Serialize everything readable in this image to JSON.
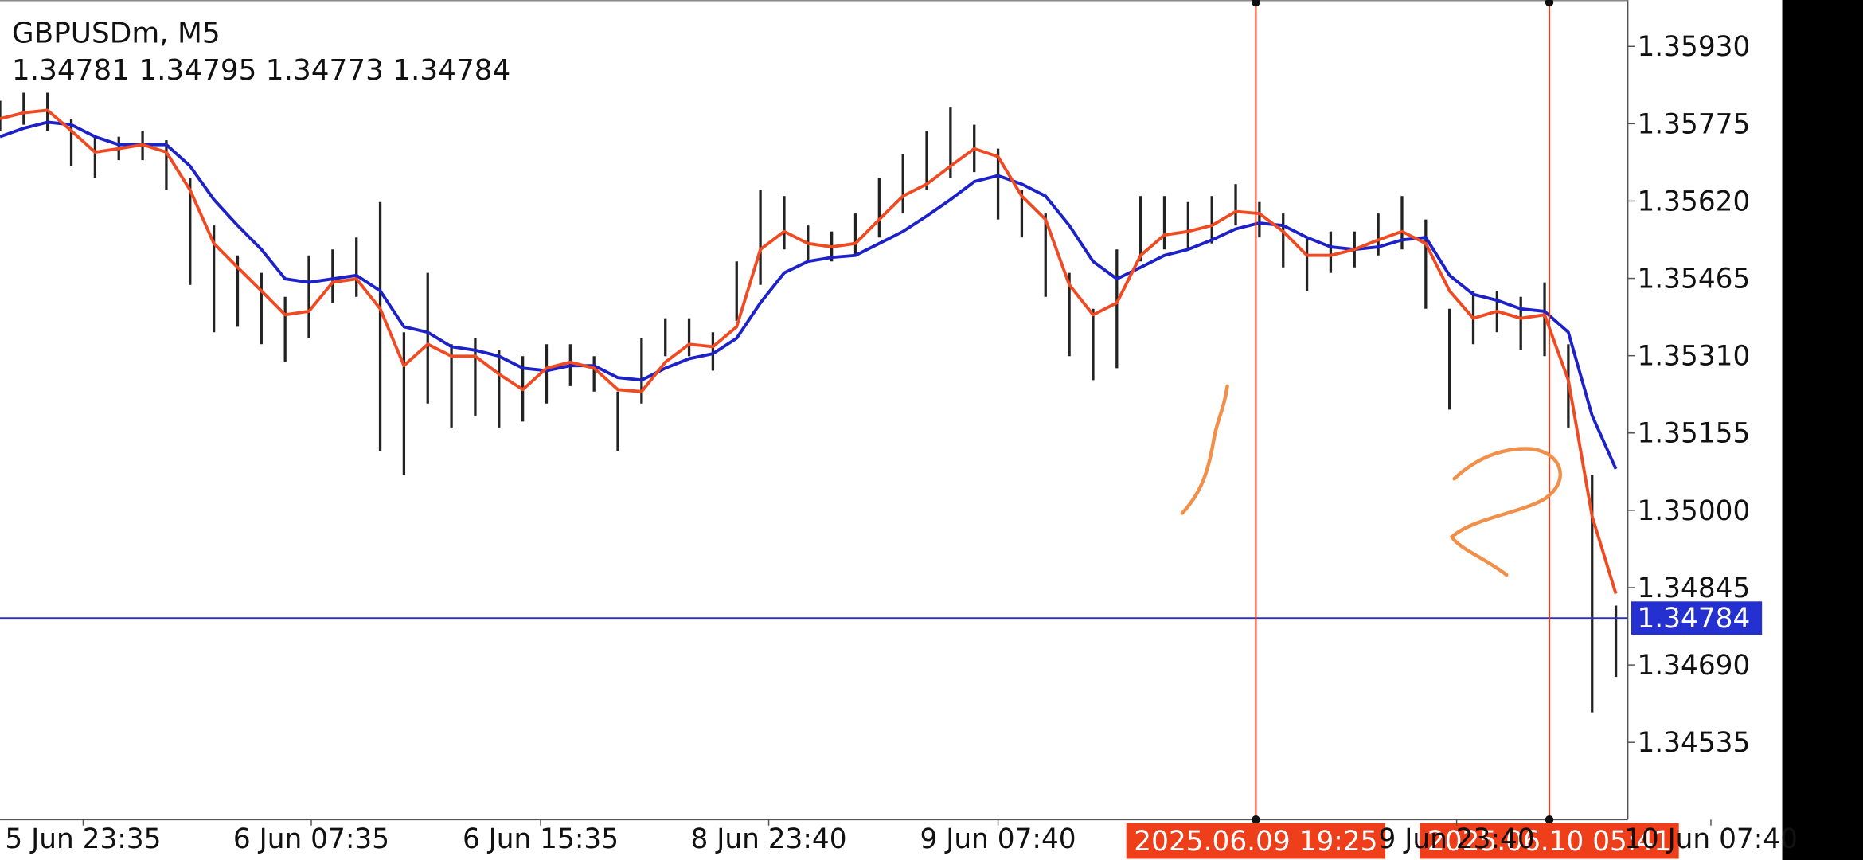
{
  "chart_data": {
    "type": "range_bar",
    "title": "GBPUSDm, M5",
    "subtitle": "1.34781 1.34795 1.34773 1.34784",
    "x": [
      0,
      10,
      20,
      30,
      40,
      50,
      60,
      70,
      80,
      90,
      100,
      110,
      120,
      130,
      140,
      150,
      160,
      170,
      180,
      190,
      200,
      210,
      220,
      230,
      240,
      250,
      260,
      270,
      280,
      290,
      300,
      310,
      320,
      330,
      340,
      350,
      360,
      370,
      380,
      390,
      400,
      410,
      420,
      430,
      440,
      450,
      460,
      470,
      480,
      490,
      500,
      510,
      520,
      530,
      540,
      550,
      560,
      570,
      580,
      590,
      600,
      610,
      620,
      630,
      640,
      650,
      660,
      670,
      680
    ],
    "high": [
      1.35821,
      1.35837,
      1.35837,
      1.35785,
      1.35749,
      1.35749,
      1.35761,
      1.35742,
      1.35666,
      1.35571,
      1.35511,
      1.35476,
      1.35428,
      1.35511,
      1.35523,
      1.35547,
      1.35618,
      1.35357,
      1.35476,
      1.35333,
      1.35345,
      1.35321,
      1.35309,
      1.35333,
      1.35333,
      1.35309,
      1.35238,
      1.35345,
      1.35385,
      1.35385,
      1.35357,
      1.35499,
      1.35642,
      1.3563,
      1.35571,
      1.35559,
      1.35595,
      1.35666,
      1.35714,
      1.35761,
      1.35809,
      1.35773,
      1.35725,
      1.35642,
      1.35595,
      1.35476,
      1.35404,
      1.35523,
      1.3563,
      1.3563,
      1.35618,
      1.3563,
      1.35654,
      1.35618,
      1.35595,
      1.35547,
      1.35559,
      1.35559,
      1.35595,
      1.3563,
      1.35583,
      1.35404,
      1.3544,
      1.3544,
      1.35428,
      1.35457,
      1.35333,
      1.35071,
      1.34809
    ],
    "low": [
      1.35761,
      1.35773,
      1.35761,
      1.3569,
      1.35666,
      1.35702,
      1.35702,
      1.35642,
      1.35452,
      1.35357,
      1.35368,
      1.35333,
      1.35297,
      1.35345,
      1.35416,
      1.35428,
      1.35119,
      1.35071,
      1.35214,
      1.35166,
      1.3519,
      1.35166,
      1.35178,
      1.35214,
      1.35249,
      1.35238,
      1.35119,
      1.35214,
      1.35309,
      1.35309,
      1.3528,
      1.3538,
      1.35452,
      1.35523,
      1.35499,
      1.35499,
      1.35511,
      1.35547,
      1.35595,
      1.35642,
      1.35666,
      1.35678,
      1.35583,
      1.35547,
      1.35428,
      1.35309,
      1.35261,
      1.35285,
      1.35499,
      1.35523,
      1.35523,
      1.35535,
      1.35571,
      1.35547,
      1.35487,
      1.3544,
      1.35476,
      1.35487,
      1.35511,
      1.35523,
      1.35404,
      1.35202,
      1.35333,
      1.35357,
      1.35321,
      1.35309,
      1.35166,
      1.34595,
      1.34666
    ],
    "bar_color": "#222222",
    "lines": [
      {
        "color": "#1c22c8",
        "values": [
          1.35749,
          1.35766,
          1.35778,
          1.35773,
          1.35749,
          1.35733,
          1.35733,
          1.35733,
          1.3569,
          1.35623,
          1.35571,
          1.35523,
          1.35464,
          1.35457,
          1.35464,
          1.35471,
          1.3544,
          1.35368,
          1.35357,
          1.35328,
          1.35321,
          1.35309,
          1.35285,
          1.3528,
          1.3529,
          1.3529,
          1.35266,
          1.35261,
          1.35285,
          1.35304,
          1.35314,
          1.35345,
          1.35416,
          1.35476,
          1.35499,
          1.35507,
          1.35511,
          1.35535,
          1.35559,
          1.3559,
          1.35623,
          1.35659,
          1.35671,
          1.35654,
          1.3563,
          1.35571,
          1.35499,
          1.35464,
          1.35487,
          1.35511,
          1.35523,
          1.35542,
          1.35564,
          1.35576,
          1.35571,
          1.35547,
          1.35528,
          1.35523,
          1.35528,
          1.35542,
          1.35547,
          1.35471,
          1.35433,
          1.35421,
          1.35404,
          1.35399,
          1.35357,
          1.3519,
          1.35083
        ]
      },
      {
        "color": "#f04a23",
        "values": [
          1.35785,
          1.35797,
          1.35802,
          1.35761,
          1.35718,
          1.35725,
          1.35733,
          1.35718,
          1.35642,
          1.35535,
          1.35487,
          1.3544,
          1.35392,
          1.35399,
          1.35457,
          1.35464,
          1.35404,
          1.3529,
          1.35333,
          1.35309,
          1.35309,
          1.35273,
          1.35242,
          1.35285,
          1.35297,
          1.35285,
          1.35242,
          1.35238,
          1.35297,
          1.35333,
          1.35328,
          1.35368,
          1.35523,
          1.35559,
          1.35535,
          1.35528,
          1.35535,
          1.35583,
          1.3563,
          1.35654,
          1.3569,
          1.35725,
          1.35709,
          1.3563,
          1.35583,
          1.35452,
          1.35392,
          1.35416,
          1.35511,
          1.35552,
          1.35559,
          1.35571,
          1.35599,
          1.35595,
          1.35559,
          1.35511,
          1.35511,
          1.35523,
          1.35542,
          1.35559,
          1.35535,
          1.3544,
          1.35385,
          1.35399,
          1.35385,
          1.35392,
          1.35261,
          1.34988,
          1.34833
        ]
      }
    ],
    "xlim": [
      0,
      685
    ],
    "xticks": [
      {
        "value": 35,
        "label": "5 Jun 23:35"
      },
      {
        "value": 131,
        "label": "6 Jun 07:35"
      },
      {
        "value": 227.5,
        "label": "6 Jun 15:35"
      },
      {
        "value": 323.5,
        "label": "8 Jun 23:40"
      },
      {
        "value": 420,
        "label": "9 Jun 07:40"
      },
      {
        "value": 613,
        "label": "9 Jun 23:40"
      },
      {
        "value": 720,
        "label": "10 Jun 07:40"
      }
    ],
    "ylim": [
      1.3438,
      1.36023
    ],
    "yticks": [
      {
        "value": 1.3593,
        "label": "1.35930"
      },
      1.35775,
      {
        "value": 1.3562,
        "label": "1.35620"
      },
      1.35465,
      {
        "value": 1.3531,
        "label": "1.35310"
      },
      1.35155,
      {
        "value": 1.35,
        "label": "1.35000"
      },
      1.34845,
      {
        "value": 1.3469,
        "label": "1.34690"
      },
      1.34535
    ],
    "grid": false,
    "current_price": 1.34784,
    "current_price_color": "#2430d0",
    "markers": [
      {
        "x": 528.5,
        "label": "2025.06.09 19:25"
      },
      {
        "x": 652,
        "label": "2025.06.10 05:41"
      }
    ],
    "marker_color": "#ef3e1a"
  }
}
